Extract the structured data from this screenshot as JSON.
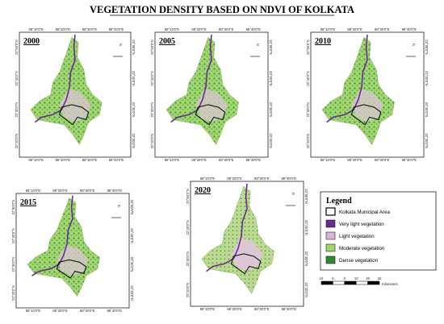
{
  "title": "VEGETATION DENSITY BASED ON NDVI OF KOLKATA",
  "lon_labels": [
    "88°10'0\"E",
    "88°20'0\"E",
    "88°30'0\"E",
    "88°40'0\"E"
  ],
  "lat_labels": [
    "22°50'0\"N",
    "22°40'0\"N",
    "22°30'0\"N",
    "22°20'0\"N"
  ],
  "north": "N",
  "panels": [
    {
      "year": "2000"
    },
    {
      "year": "2005"
    },
    {
      "year": "2010"
    },
    {
      "year": "2015"
    },
    {
      "year": "2020"
    }
  ],
  "legend": {
    "title": "Legend",
    "items": [
      {
        "label": "Kolkata Municipal Area",
        "color": "#ffffff"
      },
      {
        "label": "Very light vegetation",
        "color": "#6a2c91"
      },
      {
        "label": "Light vegetation",
        "color": "#d9b8d4"
      },
      {
        "label": "Moderate vegetation",
        "color": "#9fd46e"
      },
      {
        "label": "Dense vegetation",
        "color": "#2e8b2e"
      }
    ]
  },
  "scale": {
    "ticks": [
      "10",
      "5",
      "0",
      "10",
      "20",
      "30"
    ],
    "unit": "Kilometers"
  }
}
